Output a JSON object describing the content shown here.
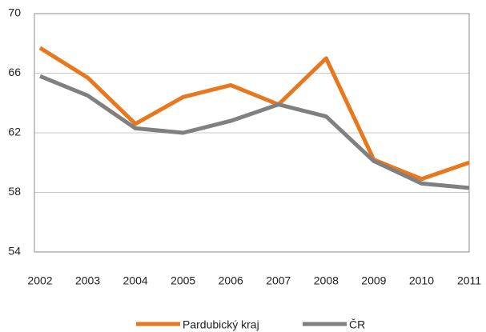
{
  "chart_data": {
    "type": "line",
    "x": [
      2002,
      2003,
      2004,
      2005,
      2006,
      2007,
      2008,
      2009,
      2010,
      2011
    ],
    "series": [
      {
        "name": "Pardubický kraj",
        "color": "#e8771e",
        "values": [
          67.7,
          65.7,
          62.6,
          64.4,
          65.2,
          63.9,
          67.0,
          60.2,
          58.9,
          60.0
        ]
      },
      {
        "name": "ČR",
        "color": "#808080",
        "values": [
          65.8,
          64.5,
          62.3,
          62.0,
          62.8,
          63.9,
          63.1,
          60.1,
          58.6,
          58.3
        ]
      }
    ],
    "ylim": [
      54,
      70
    ],
    "yticks": [
      54,
      58,
      62,
      66,
      70
    ],
    "grid": true,
    "legend": "bottom"
  }
}
